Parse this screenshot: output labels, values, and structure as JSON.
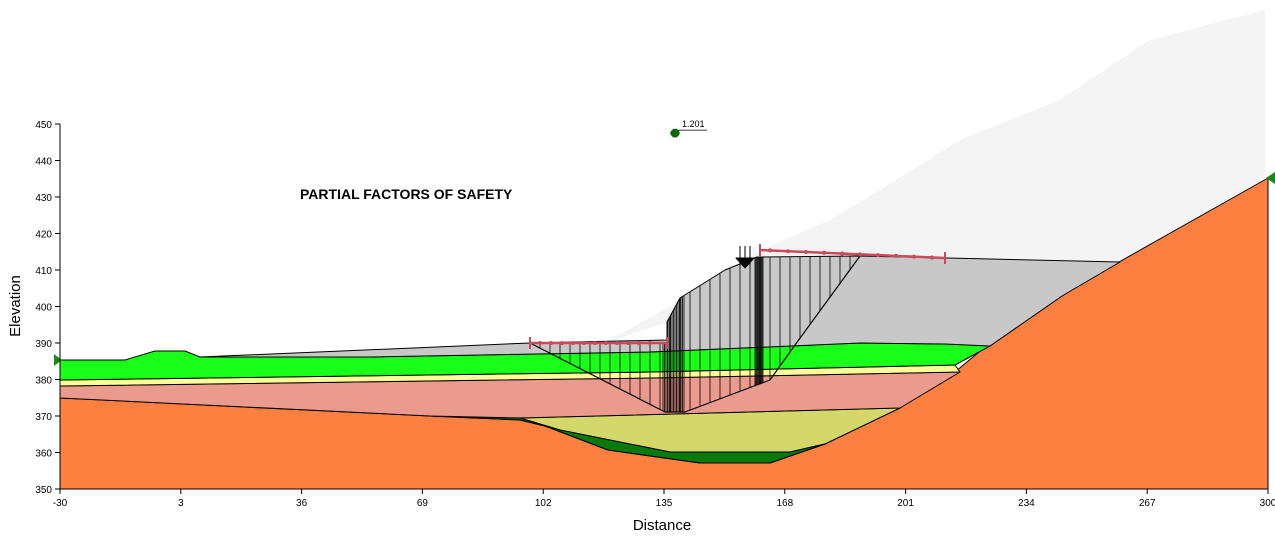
{
  "chart_data": {
    "type": "cross-section",
    "title": "PARTIAL FACTORS OF SAFETY",
    "x_label": "Distance",
    "y_label": "Elevation",
    "xlim": [
      -30,
      300
    ],
    "ylim": [
      350,
      450
    ],
    "xticks": [
      -30,
      3,
      36,
      69,
      102,
      135,
      168,
      201,
      234,
      267,
      300
    ],
    "yticks": [
      350,
      360,
      370,
      380,
      390,
      400,
      410,
      420,
      430,
      440,
      450
    ],
    "slip_center": {
      "x": 138,
      "y": 447.5,
      "label": "1.201"
    }
  }
}
